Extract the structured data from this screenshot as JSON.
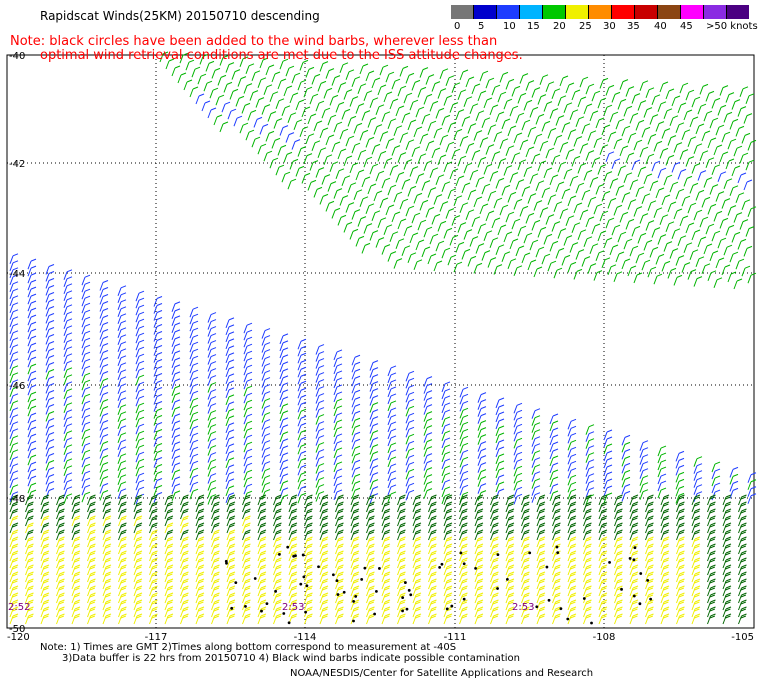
{
  "title": "Rapidscat Winds(25KM) 20150710 descending",
  "note": {
    "line1": "Note: black circles have been added to the wind barbs, wherever less than",
    "line2": "optimal wind retrieval conditions are met due to the ISS attitude changes."
  },
  "legend": {
    "colors": [
      "#777777",
      "#0000cc",
      "#1e3cff",
      "#00b4ff",
      "#00c800",
      "#f0f000",
      "#ff8c00",
      "#ff0000",
      "#c80000",
      "#8b4513",
      "#ff00ff",
      "#8a2be2",
      "#4b0082"
    ],
    "labels": [
      "0",
      "5",
      "10",
      "15",
      "20",
      "25",
      "30",
      "35",
      "40",
      "45",
      ">50 knots"
    ]
  },
  "axes": {
    "lat_labels": [
      "-40",
      "-42",
      "-44",
      "-46",
      "-48",
      "-50"
    ],
    "lon_labels": [
      "-120",
      "-117",
      "-114",
      "-111",
      "-108",
      "-105"
    ]
  },
  "time_labels": [
    "2:52",
    "2:53",
    "2:53"
  ],
  "footer": {
    "line1": "Note: 1) Times are GMT 2)Times along bottom correspond to measurement at -40S",
    "line2": "3)Data buffer is 22 hrs from 20150710 4) Black wind barbs indicate possible contamination",
    "credit": "NOAA/NESDIS/Center for Satellite Applications and Research"
  },
  "barb_colors": {
    "blue": "#1e3cff",
    "green": "#00b400",
    "dark_green": "#006400",
    "yellow": "#f0f000",
    "black": "#000000"
  }
}
